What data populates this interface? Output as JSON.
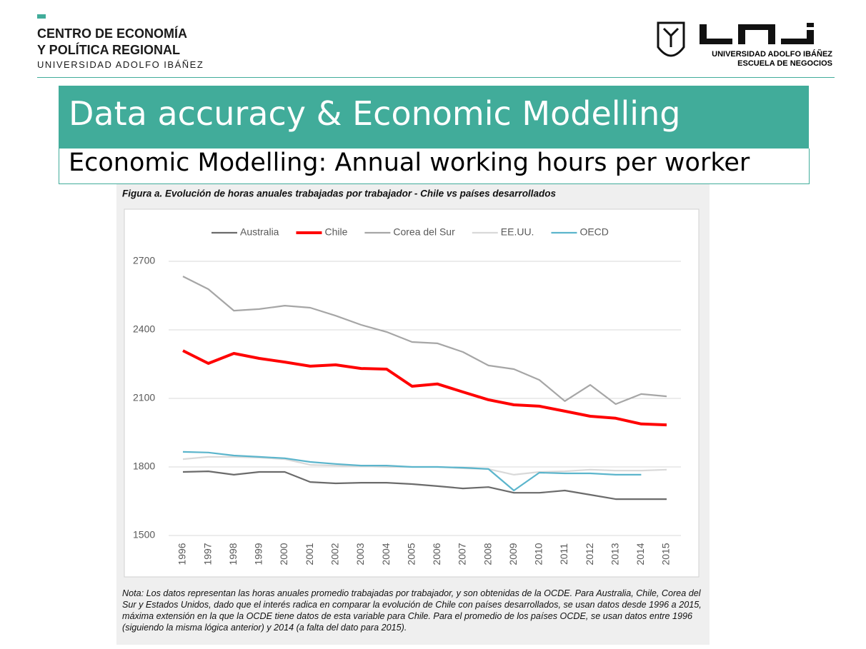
{
  "header": {
    "org_line1": "CENTRO DE ECONOMÍA",
    "org_line2": "Y POLÍTICA REGIONAL",
    "org_line3": "UNIVERSIDAD ADOLFO IBÁÑEZ",
    "uai_line1": "UNIVERSIDAD ADOLFO IBÁÑEZ",
    "uai_line2": "ESCUELA DE NEGOCIOS"
  },
  "slide": {
    "title": "Data accuracy & Economic Modelling",
    "subtitle": "Economic Modelling: Annual working hours per worker"
  },
  "chart_data": {
    "type": "line",
    "title": "Figura a. Evolución de horas anuales trabajadas por trabajador - Chile vs países desarrollados",
    "note": "Nota: Los datos representan las horas anuales promedio trabajadas por trabajador, y son obtenidas de la OCDE. Para Australia, Chile, Corea del Sur y Estados Unidos, dado que el interés radica en comparar la evolución de Chile con países desarrollados, se usan datos desde 1996 a 2015, máxima extensión en la que la OCDE tiene datos de esta variable para Chile. Para el promedio de los países OCDE, se usan datos entre 1996 (siguiendo la misma lógica anterior) y 2014 (a falta del dato para 2015).",
    "categories": [
      "1996",
      "1997",
      "1998",
      "1999",
      "2000",
      "2001",
      "2002",
      "2003",
      "2004",
      "2005",
      "2006",
      "2007",
      "2008",
      "2009",
      "2010",
      "2011",
      "2012",
      "2013",
      "2014",
      "2015"
    ],
    "series": [
      {
        "name": "Australia",
        "color": "#6b6b6b",
        "values": [
          1778,
          1781,
          1766,
          1778,
          1778,
          1734,
          1728,
          1731,
          1731,
          1725,
          1716,
          1706,
          1712,
          1687,
          1687,
          1697,
          1678,
          1659,
          1659,
          1659
        ]
      },
      {
        "name": "Chile",
        "color": "#ff0000",
        "values": [
          2309,
          2253,
          2297,
          2275,
          2259,
          2241,
          2247,
          2231,
          2228,
          2153,
          2163,
          2128,
          2094,
          2072,
          2066,
          2044,
          2022,
          2013,
          1988,
          1984
        ]
      },
      {
        "name": "Corea del Sur",
        "color": "#a6a6a6",
        "values": [
          2634,
          2578,
          2484,
          2491,
          2506,
          2497,
          2462,
          2422,
          2391,
          2347,
          2341,
          2303,
          2244,
          2228,
          2181,
          2088,
          2159,
          2075,
          2119,
          2109
        ]
      },
      {
        "name": "EE.UU.",
        "color": "#d9d9d9",
        "values": [
          1834,
          1844,
          1844,
          1841,
          1834,
          1809,
          1806,
          1803,
          1800,
          1800,
          1800,
          1794,
          1791,
          1766,
          1778,
          1781,
          1788,
          1784,
          1784,
          1788
        ]
      },
      {
        "name": "OECD",
        "color": "#5bb5cc",
        "values": [
          1866,
          1863,
          1850,
          1844,
          1838,
          1822,
          1813,
          1806,
          1806,
          1800,
          1800,
          1797,
          1791,
          1697,
          1775,
          1772,
          1772,
          1766,
          1766,
          null
        ]
      }
    ],
    "ylim": [
      1500,
      2700
    ],
    "yticks": [
      1500,
      1800,
      2100,
      2400,
      2700
    ],
    "grid": true,
    "legend": "top"
  }
}
